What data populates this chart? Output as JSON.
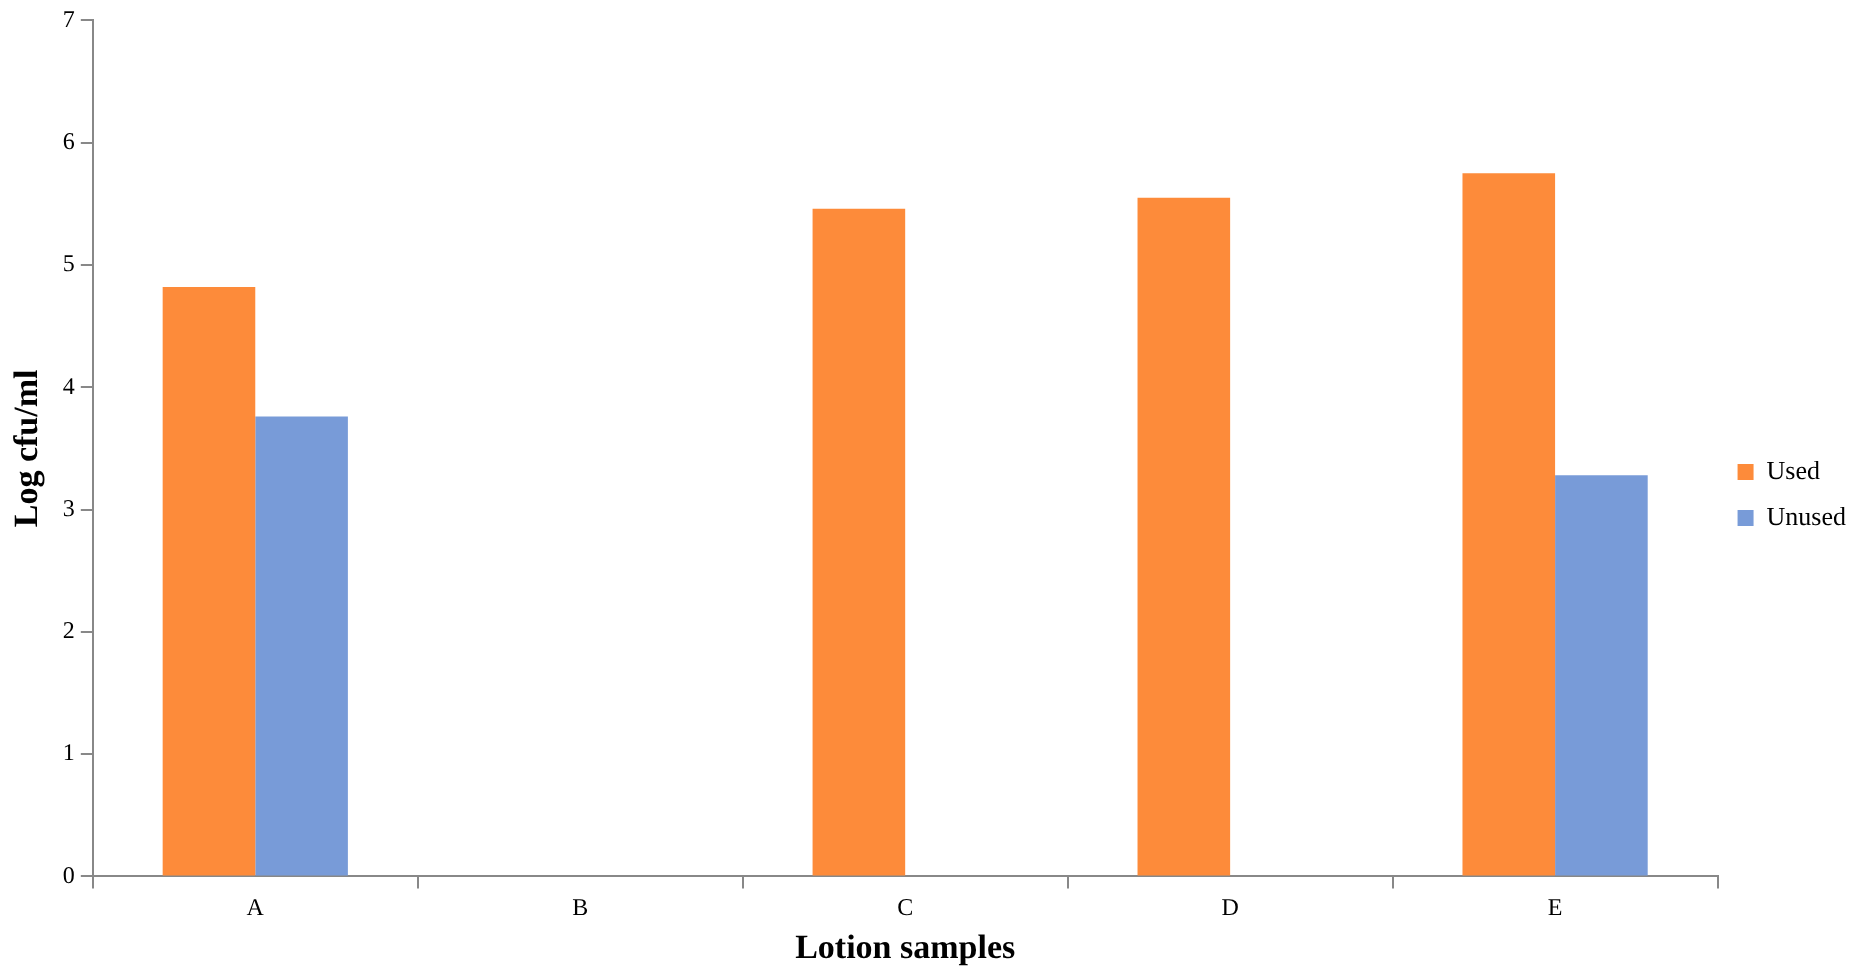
{
  "chart_data": {
    "type": "bar",
    "xlabel": "Lotion samples",
    "ylabel": "Log cfu/ml",
    "categories": [
      "A",
      "B",
      "C",
      "D",
      "E"
    ],
    "series": [
      {
        "name": "Used",
        "color": "#fd8b3a",
        "values": [
          4.82,
          0,
          5.46,
          5.55,
          5.75
        ]
      },
      {
        "name": "Unused",
        "color": "#789bd8",
        "values": [
          3.76,
          0,
          0,
          0,
          3.28
        ]
      }
    ],
    "ylim": [
      0,
      7
    ],
    "yticks": [
      0,
      1,
      2,
      3,
      4,
      5,
      6,
      7
    ],
    "grid": false,
    "legend": "right"
  }
}
